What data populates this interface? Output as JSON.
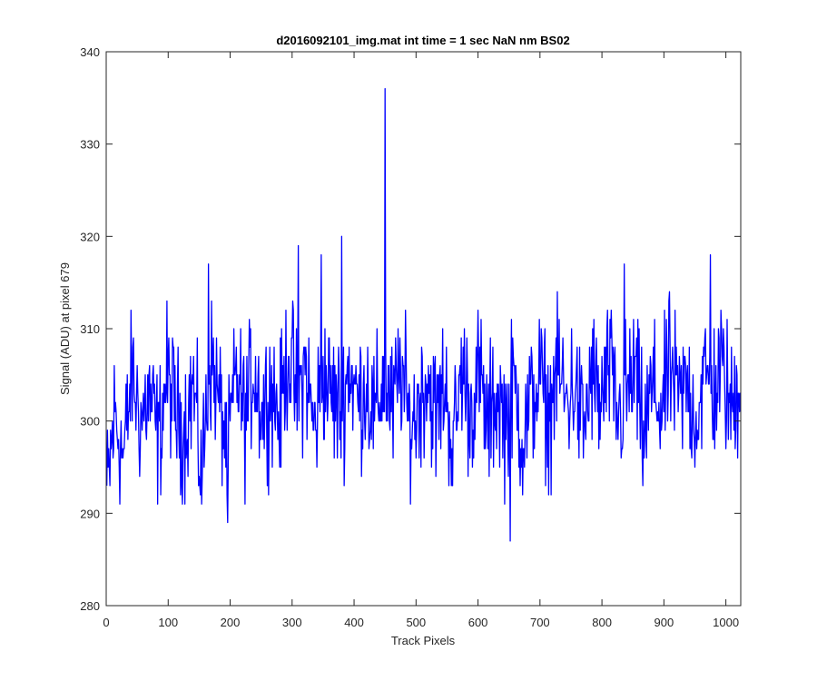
{
  "chart_data": {
    "type": "line",
    "title": "d2016092101_img.mat int time = 1 sec  NaN nm BS02",
    "xlabel": "Track Pixels",
    "ylabel": "Signal (ADU) at pixel 679",
    "xlim": [
      0,
      1024
    ],
    "ylim": [
      280,
      340
    ],
    "xticks": [
      0,
      100,
      200,
      300,
      400,
      500,
      600,
      700,
      800,
      900,
      1000
    ],
    "yticks": [
      280,
      290,
      300,
      310,
      320,
      330,
      340
    ],
    "grid": false,
    "line_color": "#0000ff",
    "series": [
      {
        "x": [
          1,
          14,
          28,
          42,
          56,
          70,
          84,
          98,
          112,
          126,
          140,
          154,
          168,
          182,
          196,
          210,
          224,
          238,
          252,
          266,
          280,
          294,
          308,
          322,
          336,
          350,
          364,
          378,
          392,
          406,
          420,
          434,
          448,
          462,
          476,
          490,
          504,
          518,
          532,
          546,
          560,
          574,
          588,
          602,
          616,
          630,
          644,
          658,
          672,
          686,
          700,
          714,
          728,
          742,
          756,
          770,
          784,
          798,
          812,
          826,
          840,
          854,
          868,
          882,
          896,
          910,
          924,
          938,
          952,
          966,
          980,
          994,
          1008,
          1024
        ],
        "values": [
          292,
          301,
          296,
          305,
          300,
          303,
          298,
          305,
          301,
          299,
          304,
          294,
          307,
          302,
          297,
          305,
          300,
          306,
          301,
          304,
          300,
          308,
          302,
          306,
          299,
          305,
          303,
          301,
          306,
          302,
          304,
          300,
          305,
          301,
          306,
          299,
          302,
          305,
          300,
          304,
          297,
          306,
          301,
          305,
          299,
          303,
          300,
          304,
          298,
          302,
          305,
          300,
          306,
          302,
          304,
          299,
          305,
          301,
          306,
          300,
          303,
          305,
          298,
          304,
          301,
          306,
          302,
          304,
          300,
          305,
          303,
          306,
          301,
          305
        ]
      }
    ],
    "notable_points": [
      {
        "x": 450,
        "y": 336
      },
      {
        "x": 652,
        "y": 287
      },
      {
        "x": 196,
        "y": 289
      },
      {
        "x": 380,
        "y": 320
      },
      {
        "x": 310,
        "y": 319
      },
      {
        "x": 975,
        "y": 318
      },
      {
        "x": 836,
        "y": 317
      },
      {
        "x": 347,
        "y": 318
      },
      {
        "x": 165,
        "y": 317
      }
    ]
  }
}
